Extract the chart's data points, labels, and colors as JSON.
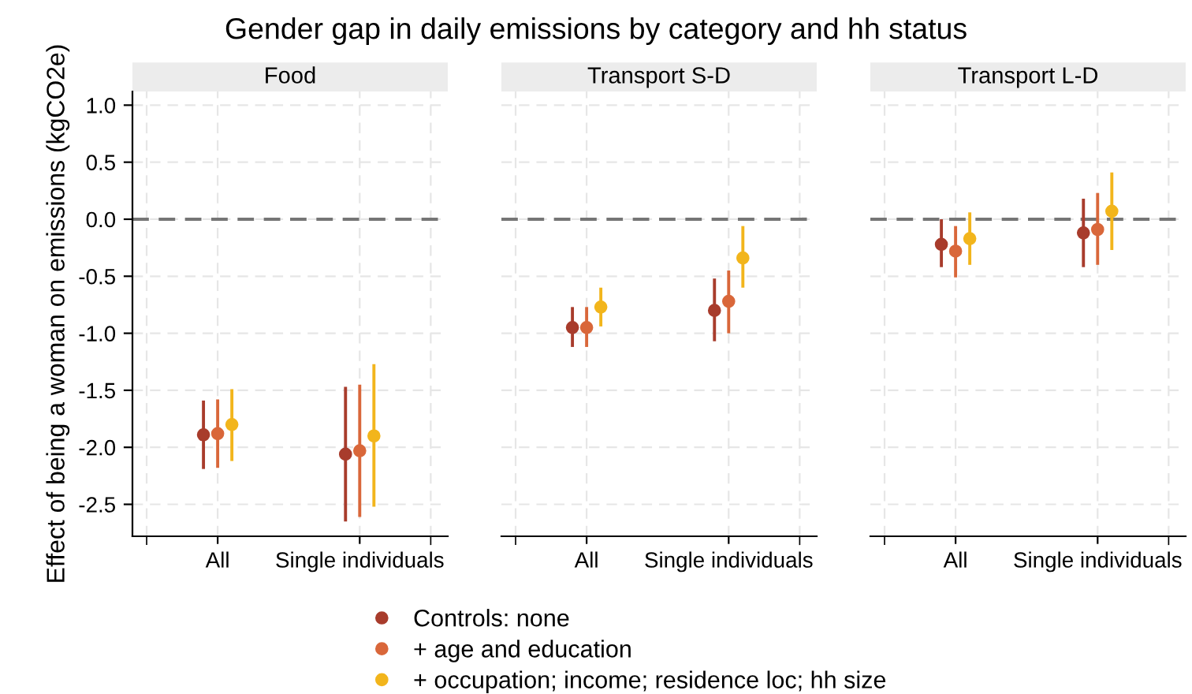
{
  "chart_data": [
    {
      "type": "scatter",
      "title": "Gender gap in daily emissions by category and hh status",
      "subtitle": "Food",
      "ylabel": "Effect of being a woman on emissions (kgCO2e)",
      "categories": [
        "All",
        "Single individuals"
      ],
      "ylim": [
        -2.78,
        1.12
      ],
      "yticks": [
        {
          "value": 1,
          "label": "1.0"
        },
        {
          "value": 0.5,
          "label": "0.5"
        },
        {
          "value": 0,
          "label": "0.0"
        },
        {
          "value": -0.5,
          "label": "-0.5"
        },
        {
          "value": -1,
          "label": "-1.0"
        },
        {
          "value": -1.5,
          "label": "-1.5"
        },
        {
          "value": -2,
          "label": "-2.0"
        },
        {
          "value": -2.5,
          "label": "-2.5"
        }
      ],
      "grid": true,
      "legend": "bottom",
      "marker": "circle",
      "ref_lines": [
        {
          "axis": "y",
          "value": 0,
          "color": "#757575",
          "line_style": "dashed"
        }
      ],
      "series": [
        {
          "name": "Controls: none",
          "color": "#a83c2c",
          "values": [
            -1.89,
            -2.06
          ],
          "errors": [
            [
              -2.19,
              -1.59
            ],
            [
              -2.65,
              -1.47
            ]
          ]
        },
        {
          "name": "+ age and education",
          "color": "#d9673a",
          "values": [
            -1.88,
            -2.03
          ],
          "errors": [
            [
              -2.18,
              -1.58
            ],
            [
              -2.61,
              -1.45
            ]
          ]
        },
        {
          "name": "+ occupation; income; residence loc; hh size",
          "color": "#f2b51c",
          "values": [
            -1.8,
            -1.9
          ],
          "errors": [
            [
              -2.12,
              -1.49
            ],
            [
              -2.52,
              -1.27
            ]
          ]
        }
      ]
    },
    {
      "type": "scatter",
      "subtitle": "Transport S-D",
      "tick_labels": "x",
      "categories": [
        "All",
        "Single individuals"
      ],
      "ylim": [
        -2.78,
        1.12
      ],
      "grid": true,
      "marker": "circle",
      "ref_lines": [
        {
          "axis": "y",
          "value": 0,
          "color": "#757575",
          "line_style": "dashed"
        }
      ],
      "series": [
        {
          "color": "#a83c2c",
          "values": [
            -0.95,
            -0.8
          ],
          "errors": [
            [
              -1.12,
              -0.77
            ],
            [
              -1.07,
              -0.52
            ]
          ]
        },
        {
          "color": "#d9673a",
          "values": [
            -0.95,
            -0.72
          ],
          "errors": [
            [
              -1.12,
              -0.77
            ],
            [
              -1.0,
              -0.45
            ]
          ]
        },
        {
          "color": "#f2b51c",
          "values": [
            -0.77,
            -0.34
          ],
          "errors": [
            [
              -0.94,
              -0.6
            ],
            [
              -0.6,
              -0.06
            ]
          ]
        }
      ]
    },
    {
      "type": "scatter",
      "subtitle": "Transport L-D",
      "tick_labels": "x",
      "categories": [
        "All",
        "Single individuals"
      ],
      "ylim": [
        -2.78,
        1.12
      ],
      "grid": true,
      "marker": "circle",
      "ref_lines": [
        {
          "axis": "y",
          "value": 0,
          "color": "#757575",
          "line_style": "dashed"
        }
      ],
      "series": [
        {
          "color": "#a83c2c",
          "values": [
            -0.22,
            -0.12
          ],
          "errors": [
            [
              -0.42,
              0.0
            ],
            [
              -0.42,
              0.18
            ]
          ]
        },
        {
          "color": "#d9673a",
          "values": [
            -0.28,
            -0.09
          ],
          "errors": [
            [
              -0.51,
              -0.06
            ],
            [
              -0.4,
              0.23
            ]
          ]
        },
        {
          "color": "#f2b51c",
          "values": [
            -0.17,
            0.07
          ],
          "errors": [
            [
              -0.4,
              0.06
            ],
            [
              -0.27,
              0.41
            ]
          ]
        }
      ]
    }
  ]
}
